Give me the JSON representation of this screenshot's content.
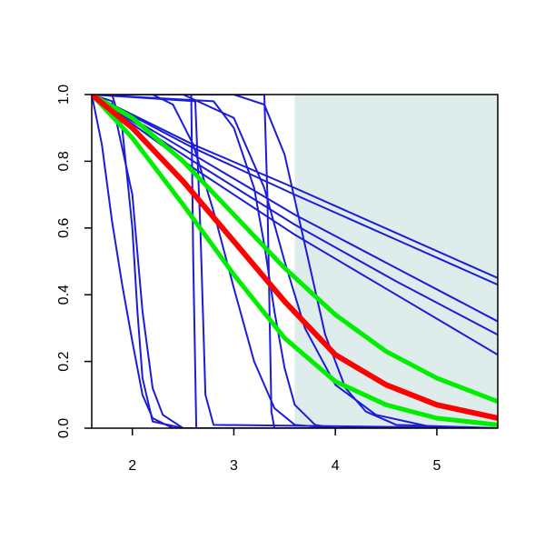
{
  "chart_data": {
    "type": "line",
    "xlim": [
      1.6,
      5.6
    ],
    "ylim": [
      0,
      1
    ],
    "xticks": [
      2,
      3,
      4,
      5
    ],
    "yticks": [
      {
        "value": 0,
        "label": "0.0"
      },
      {
        "value": 0.2,
        "label": "0.2"
      },
      {
        "value": 0.4,
        "label": "0.4"
      },
      {
        "value": 0.6,
        "label": "0.6"
      },
      {
        "value": 0.8,
        "label": "0.8"
      },
      {
        "value": 1,
        "label": "1.0"
      }
    ],
    "highlight": [
      3.6,
      5.6
    ],
    "highlight_color": "#deeceb",
    "series": [
      {
        "color": "#1c1cd9",
        "line_width": 2,
        "x": [
          1.6,
          2.6,
          3.6,
          4.6,
          5.6
        ],
        "values": [
          1,
          0.85,
          0.72,
          0.585,
          0.45
        ]
      },
      {
        "color": "#1c1cd9",
        "line_width": 2,
        "x": [
          1.6,
          2.6,
          3.6,
          4.6,
          5.6
        ],
        "values": [
          1,
          0.84,
          0.7,
          0.565,
          0.43
        ]
      },
      {
        "color": "#1c1cd9",
        "line_width": 2,
        "x": [
          1.6,
          2.6,
          3.6,
          4.6,
          5.6
        ],
        "values": [
          1,
          0.82,
          0.64,
          0.48,
          0.32
        ]
      },
      {
        "color": "#1c1cd9",
        "line_width": 2,
        "x": [
          1.6,
          2.6,
          3.6,
          4.6,
          5.6
        ],
        "values": [
          1,
          0.8,
          0.61,
          0.44,
          0.28
        ]
      },
      {
        "color": "#1c1cd9",
        "line_width": 2,
        "x": [
          1.6,
          2.6,
          3.6,
          4.6,
          5.6
        ],
        "values": [
          1,
          0.78,
          0.58,
          0.4,
          0.22
        ]
      },
      {
        "color": "#1c1cd9",
        "line_width": 2,
        "x": [
          1.6,
          1.7,
          1.8,
          1.9,
          2.0,
          2.1,
          2.2,
          2.4,
          5.6
        ],
        "values": [
          1,
          0.85,
          0.62,
          0.43,
          0.26,
          0.1,
          0.03,
          0,
          0
        ]
      },
      {
        "color": "#1c1cd9",
        "line_width": 2,
        "x": [
          1.6,
          1.8,
          1.9,
          2.0,
          2.05,
          2.1,
          2.2,
          2.5,
          5.6
        ],
        "values": [
          1,
          1,
          0.9,
          0.6,
          0.35,
          0.15,
          0.02,
          0,
          0
        ]
      },
      {
        "color": "#1c1cd9",
        "line_width": 2,
        "x": [
          1.6,
          1.8,
          2.0,
          2.1,
          2.2,
          2.3,
          2.5,
          5.6
        ],
        "values": [
          1,
          0.98,
          0.7,
          0.35,
          0.12,
          0.04,
          0,
          0
        ]
      },
      {
        "color": "#1c1cd9",
        "line_width": 2,
        "x": [
          1.6,
          2.58,
          2.6,
          2.63,
          5.6
        ],
        "values": [
          1,
          1,
          0.5,
          0,
          0
        ]
      },
      {
        "color": "#1c1cd9",
        "line_width": 2,
        "x": [
          1.6,
          2.62,
          2.67,
          2.72,
          2.8,
          5.6
        ],
        "values": [
          1,
          0.98,
          0.6,
          0.1,
          0.01,
          0
        ]
      },
      {
        "color": "#1c1cd9",
        "line_width": 2,
        "x": [
          1.6,
          3.3,
          3.33,
          3.37,
          3.4,
          5.6
        ],
        "values": [
          1,
          1,
          0.7,
          0.05,
          0,
          0
        ]
      },
      {
        "color": "#1c1cd9",
        "line_width": 2,
        "x": [
          1.6,
          2.2,
          2.4,
          2.6,
          2.8,
          3.0,
          3.2,
          3.4,
          3.6,
          4.0,
          5.6
        ],
        "values": [
          1,
          1,
          0.97,
          0.85,
          0.65,
          0.42,
          0.2,
          0.06,
          0.01,
          0,
          0
        ]
      },
      {
        "color": "#1c1cd9",
        "line_width": 2,
        "x": [
          1.6,
          2.8,
          3.0,
          3.2,
          3.3,
          3.4,
          3.5,
          3.6,
          3.8,
          4.0,
          5.6
        ],
        "values": [
          1,
          0.98,
          0.9,
          0.72,
          0.55,
          0.35,
          0.18,
          0.07,
          0.01,
          0,
          0
        ]
      },
      {
        "color": "#1c1cd9",
        "line_width": 2,
        "x": [
          1.6,
          3.0,
          3.3,
          3.5,
          3.7,
          3.9,
          4.1,
          4.3,
          4.6,
          5.6
        ],
        "values": [
          1,
          1,
          0.97,
          0.82,
          0.55,
          0.28,
          0.12,
          0.05,
          0.01,
          0
        ]
      },
      {
        "color": "#1c1cd9",
        "line_width": 2,
        "x": [
          1.6,
          2.5,
          3.0,
          3.3,
          3.5,
          3.7,
          4.0,
          4.4,
          5.0,
          5.6
        ],
        "values": [
          1,
          1,
          0.93,
          0.72,
          0.5,
          0.3,
          0.13,
          0.04,
          0,
          0
        ]
      },
      {
        "color": "#00ee00",
        "line_width": 5,
        "x": [
          1.6,
          2.0,
          2.5,
          3.0,
          3.5,
          4.0,
          4.5,
          5.0,
          5.6
        ],
        "values": [
          1,
          0.93,
          0.8,
          0.64,
          0.48,
          0.34,
          0.23,
          0.15,
          0.08
        ]
      },
      {
        "color": "#00ee00",
        "line_width": 5,
        "x": [
          1.6,
          2.0,
          2.5,
          3.0,
          3.5,
          4.0,
          4.5,
          5.0,
          5.6
        ],
        "values": [
          1,
          0.87,
          0.67,
          0.46,
          0.27,
          0.14,
          0.07,
          0.03,
          0.01
        ]
      },
      {
        "color": "#ff0000",
        "line_width": 6,
        "x": [
          1.6,
          2.0,
          2.5,
          3.0,
          3.5,
          4.0,
          4.5,
          5.0,
          5.6
        ],
        "values": [
          1,
          0.9,
          0.74,
          0.56,
          0.38,
          0.22,
          0.13,
          0.07,
          0.03
        ]
      }
    ]
  }
}
